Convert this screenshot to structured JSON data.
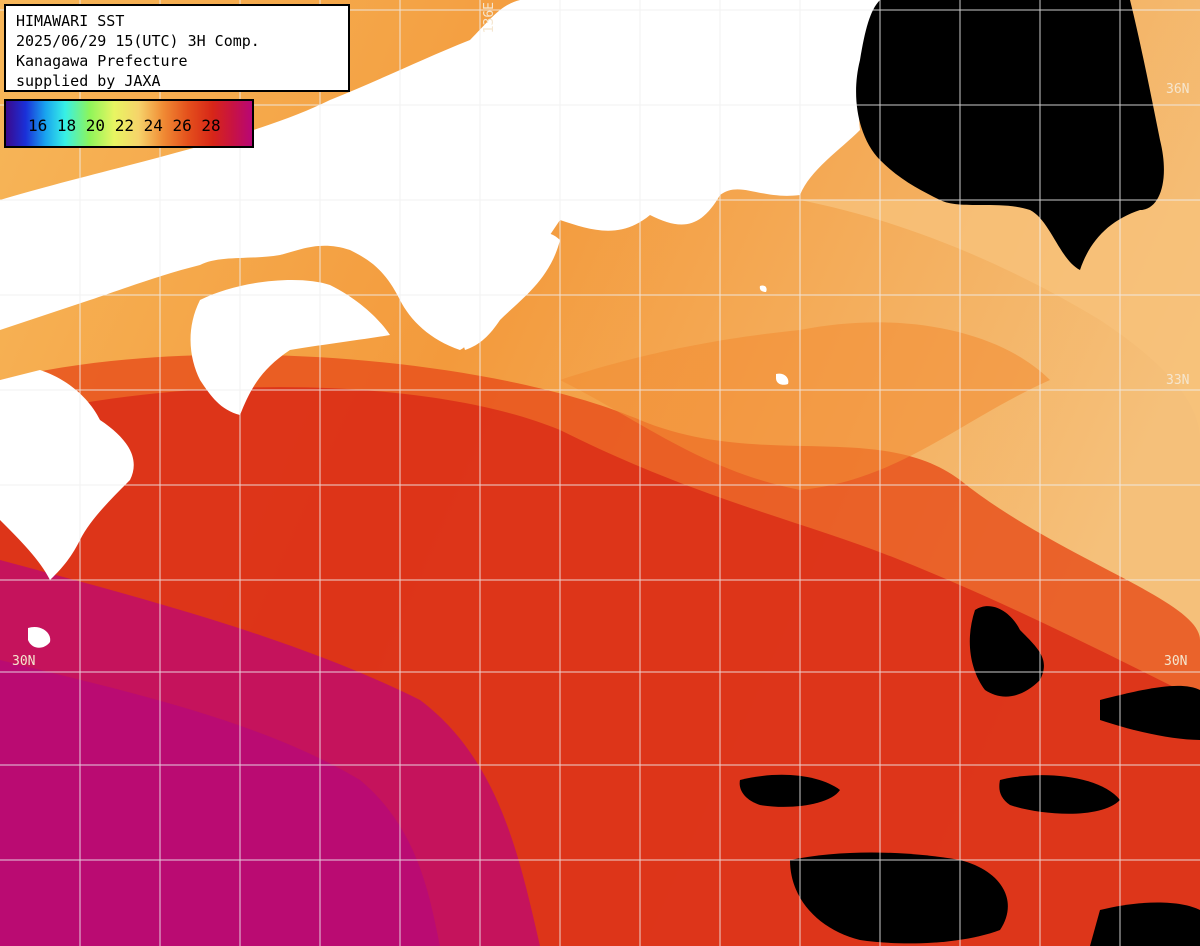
{
  "title": {
    "line1": "HIMAWARI SST",
    "line2": "2025/06/29 15(UTC) 3H Comp.",
    "line3": "Kanagawa Prefecture",
    "line4": "supplied by JAXA"
  },
  "legend": {
    "labels": "16 18 20 22 24 26 28",
    "unit_range": [
      16,
      28
    ]
  },
  "grid_labels": {
    "lon_136": "136E",
    "lat_36": "36N",
    "lat_33": "33N",
    "lat_30_left": "30N",
    "lat_30_right": "30N"
  },
  "colors": {
    "land": "#ffffff",
    "cloud": "#000000",
    "grid": "#f0f0f0",
    "warm_magenta": "#c0106e",
    "warm_red": "#da2816",
    "orange": "#ee6e22",
    "light_orange": "#f6b25a"
  }
}
